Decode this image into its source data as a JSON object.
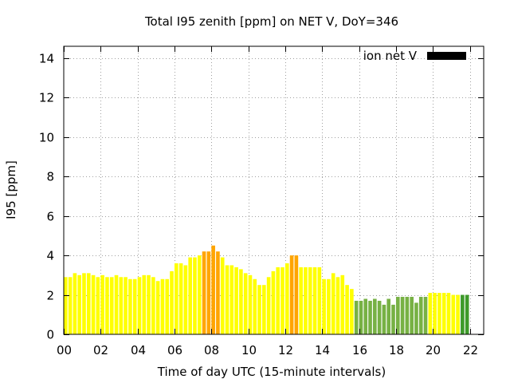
{
  "chart_data": {
    "type": "bar",
    "title": "Total I95 zenith [ppm] on NET V, DoY=346",
    "xlabel": "Time of day UTC (15-minute intervals)",
    "ylabel": "I95 [ppm]",
    "xlim": [
      0,
      22.75
    ],
    "ylim": [
      0,
      14.6
    ],
    "x_ticks": [
      "00",
      "02",
      "04",
      "06",
      "08",
      "10",
      "12",
      "14",
      "16",
      "18",
      "20",
      "22"
    ],
    "y_ticks": [
      "0",
      "2",
      "4",
      "6",
      "8",
      "10",
      "12",
      "14"
    ],
    "grid": true,
    "legend": {
      "label": "ion net V",
      "position": "top-right",
      "color": "#000000"
    },
    "bar_width_hours": 0.2,
    "colors": {
      "yellow": "#ffff00",
      "orange": "#ffa500",
      "green": "#77b144",
      "dark_green": "#3d9a2a"
    },
    "series": [
      {
        "name": "ion net V",
        "values": [
          2.9,
          2.9,
          3.1,
          3.0,
          3.1,
          3.1,
          3.0,
          2.9,
          3.0,
          2.9,
          2.9,
          3.0,
          2.9,
          2.9,
          2.8,
          2.8,
          2.9,
          3.0,
          3.0,
          2.9,
          2.7,
          2.8,
          2.8,
          3.2,
          3.6,
          3.6,
          3.5,
          3.9,
          3.9,
          4.0,
          4.2,
          4.2,
          4.5,
          4.2,
          3.9,
          3.5,
          3.5,
          3.4,
          3.3,
          3.1,
          3.0,
          2.8,
          2.5,
          2.5,
          2.9,
          3.2,
          3.4,
          3.4,
          3.6,
          4.0,
          4.0,
          3.4,
          3.4,
          3.4,
          3.4,
          3.4,
          2.8,
          2.8,
          3.1,
          2.9,
          3.0,
          2.5,
          2.3,
          1.7,
          1.7,
          1.8,
          1.7,
          1.8,
          1.7,
          1.5,
          1.8,
          1.5,
          1.9,
          1.9,
          1.9,
          1.9,
          1.6,
          1.9,
          1.9,
          2.1,
          2.1,
          2.1,
          2.1,
          2.1,
          2.0,
          2.0,
          2.0,
          2.0
        ]
      }
    ],
    "bar_colors": [
      "yellow",
      "yellow",
      "yellow",
      "yellow",
      "yellow",
      "yellow",
      "yellow",
      "yellow",
      "yellow",
      "yellow",
      "yellow",
      "yellow",
      "yellow",
      "yellow",
      "yellow",
      "yellow",
      "yellow",
      "yellow",
      "yellow",
      "yellow",
      "yellow",
      "yellow",
      "yellow",
      "yellow",
      "yellow",
      "yellow",
      "yellow",
      "yellow",
      "yellow",
      "yellow",
      "orange",
      "orange",
      "orange",
      "orange",
      "yellow",
      "yellow",
      "yellow",
      "yellow",
      "yellow",
      "yellow",
      "yellow",
      "yellow",
      "yellow",
      "yellow",
      "yellow",
      "yellow",
      "yellow",
      "yellow",
      "yellow",
      "orange",
      "orange",
      "yellow",
      "yellow",
      "yellow",
      "yellow",
      "yellow",
      "yellow",
      "yellow",
      "yellow",
      "yellow",
      "yellow",
      "yellow",
      "yellow",
      "green",
      "green",
      "green",
      "green",
      "green",
      "green",
      "green",
      "green",
      "green",
      "green",
      "green",
      "green",
      "green",
      "green",
      "green",
      "green",
      "yellow",
      "yellow",
      "yellow",
      "yellow",
      "yellow",
      "yellow",
      "yellow",
      "dark_green",
      "dark_green"
    ]
  }
}
